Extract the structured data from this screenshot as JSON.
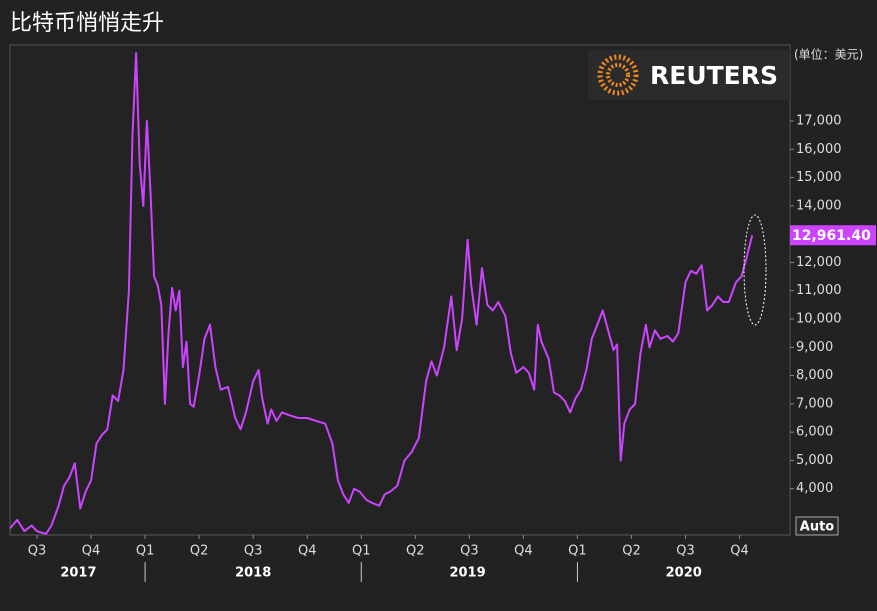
{
  "chart_data": {
    "type": "line",
    "title": "比特币悄悄走升",
    "unit_label": "(单位：美元)",
    "brand": "REUTERS",
    "button": "Auto",
    "end_label": "12,961.40",
    "x": [
      -1.5,
      -1.1,
      -0.7,
      -0.3,
      0,
      0.5,
      0.8,
      1.2,
      1.5,
      1.8,
      2.1,
      2.4,
      2.7,
      3,
      3.3,
      3.6,
      3.9,
      4.2,
      4.5,
      4.8,
      5.1,
      5.3,
      5.5,
      5.7,
      5.9,
      6.1,
      6.3,
      6.5,
      6.7,
      6.9,
      7.1,
      7.3,
      7.5,
      7.7,
      7.9,
      8.1,
      8.3,
      8.5,
      8.7,
      9,
      9.3,
      9.6,
      9.9,
      10.2,
      10.6,
      11,
      11.3,
      11.6,
      12,
      12.3,
      12.5,
      12.8,
      13,
      13.3,
      13.6,
      14,
      14.5,
      15,
      15.5,
      16,
      16.4,
      16.7,
      17,
      17.3,
      17.6,
      17.9,
      18.3,
      18.6,
      19,
      19.3,
      19.6,
      20,
      20.4,
      20.8,
      21.2,
      21.6,
      21.9,
      22.2,
      22.6,
      23,
      23.3,
      23.6,
      23.9,
      24.1,
      24.4,
      24.7,
      25,
      25.3,
      25.6,
      26,
      26.3,
      26.6,
      27,
      27.3,
      27.6,
      27.8,
      28,
      28.4,
      28.7,
      29,
      29.3,
      29.6,
      29.9,
      30.2,
      30.5,
      30.8,
      31.1,
      31.4,
      31.7,
      32,
      32.2,
      32.4,
      32.6,
      32.9,
      33.2,
      33.5,
      33.8,
      34,
      34.3,
      34.6,
      35,
      35.3,
      35.6,
      36,
      36.3,
      36.6,
      36.9,
      37.2,
      37.5,
      37.8,
      38.1,
      38.4,
      38.8,
      39.1,
      39.4,
      39.7
    ],
    "series": [
      {
        "name": "Bitcoin",
        "color": "#cc44ff",
        "values": [
          2600,
          2900,
          2500,
          2700,
          2500,
          2400,
          2700,
          3400,
          4100,
          4400,
          4900,
          3300,
          3900,
          4300,
          5600,
          5900,
          6100,
          7300,
          7100,
          8200,
          11000,
          16500,
          19400,
          15500,
          14000,
          17000,
          14500,
          11500,
          11200,
          10500,
          7000,
          9500,
          11100,
          10300,
          11000,
          8300,
          9200,
          7000,
          6900,
          8000,
          9300,
          9800,
          8300,
          7500,
          7600,
          6500,
          6100,
          6700,
          7800,
          8200,
          7200,
          6300,
          6800,
          6400,
          6700,
          6600,
          6500,
          6500,
          6400,
          6300,
          5600,
          4300,
          3800,
          3500,
          4000,
          3900,
          3600,
          3500,
          3400,
          3800,
          3900,
          4100,
          5000,
          5300,
          5800,
          7800,
          8500,
          8000,
          9000,
          10800,
          8900,
          10000,
          12800,
          11200,
          9800,
          11800,
          10500,
          10300,
          10600,
          10100,
          8800,
          8100,
          8300,
          8100,
          7500,
          9800,
          9200,
          8600,
          7400,
          7300,
          7100,
          6700,
          7200,
          7500,
          8200,
          9300,
          9800,
          10300,
          9600,
          8900,
          9100,
          5000,
          6300,
          6800,
          7000,
          8800,
          9800,
          9000,
          9600,
          9300,
          9400,
          9200,
          9500,
          11300,
          11700,
          11600,
          11900,
          10300,
          10500,
          10800,
          10600,
          10600,
          11300,
          11500,
          12200,
          12961.4
        ]
      }
    ],
    "xlim": [
      -1.5,
      41.8
    ],
    "xticks": [
      {
        "value": 0,
        "label": "Q3"
      },
      {
        "value": 3,
        "label": "Q4"
      },
      {
        "value": 6,
        "label": "Q1"
      },
      {
        "value": 9,
        "label": "Q2"
      },
      {
        "value": 12,
        "label": "Q3"
      },
      {
        "value": 15,
        "label": "Q4"
      },
      {
        "value": 18,
        "label": "Q1"
      },
      {
        "value": 21,
        "label": "Q2"
      },
      {
        "value": 24,
        "label": "Q3"
      },
      {
        "value": 27,
        "label": "Q4"
      },
      {
        "value": 30,
        "label": "Q1"
      },
      {
        "value": 33,
        "label": "Q2"
      },
      {
        "value": 36,
        "label": "Q3"
      },
      {
        "value": 39,
        "label": "Q4"
      }
    ],
    "year_labels": [
      {
        "value": 2.3,
        "label": "2017"
      },
      {
        "value": 12,
        "label": "2018"
      },
      {
        "value": 23.9,
        "label": "2019"
      },
      {
        "value": 35.9,
        "label": "2020"
      }
    ],
    "year_ticks": [
      6,
      18,
      30
    ],
    "ylim": [
      2365,
      19686
    ],
    "yticks": [
      {
        "value": 4000,
        "label": "4,000"
      },
      {
        "value": 5000,
        "label": "5,000"
      },
      {
        "value": 6000,
        "label": "6,000"
      },
      {
        "value": 7000,
        "label": "7,000"
      },
      {
        "value": 8000,
        "label": "8,000"
      },
      {
        "value": 9000,
        "label": "9,000"
      },
      {
        "value": 10000,
        "label": "10,000"
      },
      {
        "value": 11000,
        "label": "11,000"
      },
      {
        "value": 12000,
        "label": "12,000"
      },
      {
        "value": 13000,
        "label": "13,000"
      },
      {
        "value": 14000,
        "label": "14,000"
      },
      {
        "value": 15000,
        "label": "15,000"
      },
      {
        "value": 16000,
        "label": "16,000"
      },
      {
        "value": 17000,
        "label": "17,000"
      }
    ]
  }
}
